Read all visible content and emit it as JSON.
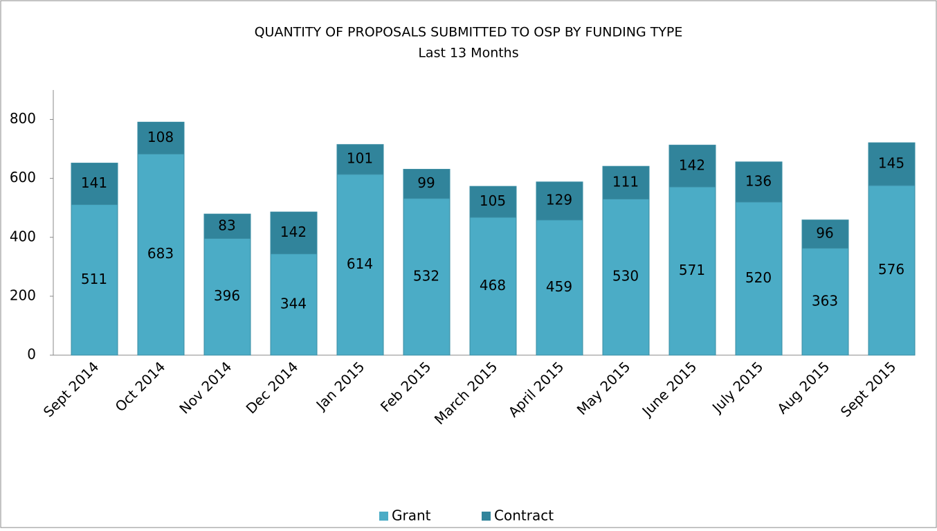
{
  "chart_data": {
    "type": "stacked-bar",
    "title": "QUANTITY OF PROPOSALS SUBMITTED TO OSP BY FUNDING TYPE",
    "subtitle": "Last 13 Months",
    "categories": [
      "Sept 2014",
      "Oct 2014",
      "Nov 2014",
      "Dec 2014",
      "Jan 2015",
      "Feb 2015",
      "March 2015",
      "April 2015",
      "May 2015",
      "June 2015",
      "July 2015",
      "Aug 2015",
      "Sept 2015"
    ],
    "series": [
      {
        "name": "Grant",
        "color": "#4bacc6",
        "values": [
          511,
          683,
          396,
          344,
          614,
          532,
          468,
          459,
          530,
          571,
          520,
          363,
          576
        ]
      },
      {
        "name": "Contract",
        "color": "#31849b",
        "values": [
          141,
          108,
          83,
          142,
          101,
          99,
          105,
          129,
          111,
          142,
          136,
          96,
          145
        ]
      }
    ],
    "ylim": [
      0,
      900
    ],
    "yticks": [
      0,
      200,
      400,
      600,
      800
    ],
    "legend": "bottom"
  }
}
